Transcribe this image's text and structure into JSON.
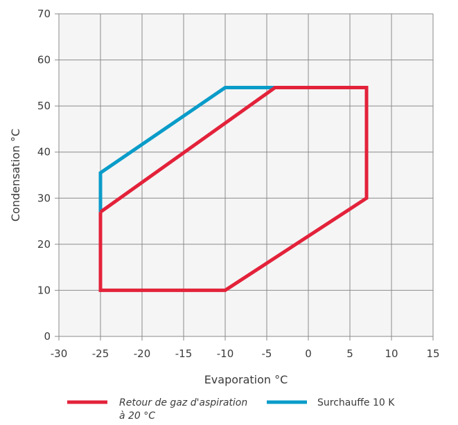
{
  "chart_data": {
    "type": "line",
    "xlabel": "Evaporation °C",
    "ylabel": "Condensation °C",
    "xlim": [
      -30,
      15
    ],
    "ylim": [
      0,
      70
    ],
    "x_ticks": [
      -30,
      -25,
      -20,
      -15,
      -10,
      -5,
      0,
      5,
      10,
      15
    ],
    "y_ticks": [
      0,
      10,
      20,
      30,
      40,
      50,
      60,
      70
    ],
    "grid": true,
    "legend_position": "bottom",
    "series": [
      {
        "name": "Retour de gaz d'aspiration à 20 °C",
        "name_lines": [
          "Retour de gaz d'aspiration",
          "à 20 °C"
        ],
        "color": "#e3223a",
        "points": [
          [
            -25,
            27
          ],
          [
            -4,
            54
          ],
          [
            7,
            54
          ],
          [
            7,
            30
          ],
          [
            -10,
            10
          ],
          [
            -25,
            10
          ],
          [
            -25,
            27
          ]
        ]
      },
      {
        "name": "Surchauffe 10 K",
        "name_lines": [
          "Surchauffe 10 K"
        ],
        "color": "#0a9cc9",
        "points": [
          [
            -25,
            27
          ],
          [
            -25,
            35.5
          ],
          [
            -10,
            54
          ],
          [
            -4,
            54
          ]
        ]
      }
    ]
  }
}
